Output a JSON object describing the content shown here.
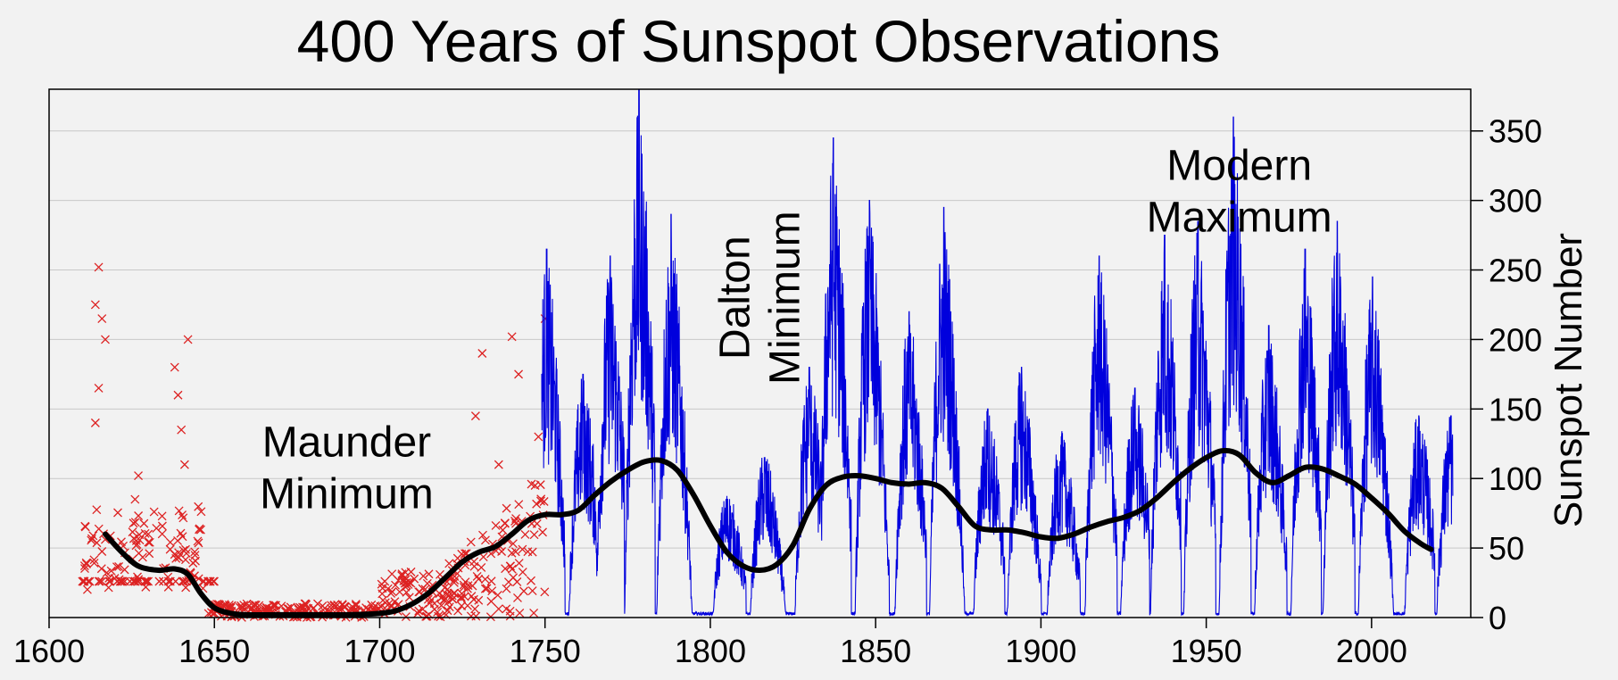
{
  "chart_data": {
    "type": "scatter+line",
    "title": "400 Years of Sunspot Observations",
    "xlabel": "",
    "ylabel": "Sunspot Number",
    "xlim": [
      1600,
      2030
    ],
    "ylim": [
      0,
      380
    ],
    "x_ticks": [
      1600,
      1650,
      1700,
      1750,
      1800,
      1850,
      1900,
      1950,
      2000
    ],
    "y_ticks": [
      0,
      50,
      100,
      150,
      200,
      250,
      300,
      350
    ],
    "y_axis_side": "right",
    "grid": "horizontal",
    "colors": {
      "early_observations": "#dd2222",
      "monthly": "#0000dd",
      "smoothed": "#000000"
    },
    "annotations": [
      {
        "lines": [
          "Maunder",
          "Minimum"
        ],
        "x": 1690,
        "y": 116,
        "vertical": false
      },
      {
        "lines": [
          "Dalton",
          "Minimum"
        ],
        "x": 1815,
        "y": 230,
        "vertical": true
      },
      {
        "lines": [
          "Modern",
          "Maximum"
        ],
        "x": 1960,
        "y": 315,
        "vertical": false
      }
    ],
    "cycles": [
      {
        "max_year": 1750.5,
        "max": 265
      },
      {
        "max_year": 1761.5,
        "max": 175
      },
      {
        "max_year": 1769.7,
        "max": 260
      },
      {
        "max_year": 1778.4,
        "max": 380
      },
      {
        "max_year": 1788.1,
        "max": 290
      },
      {
        "max_year": 1805.2,
        "max": 85
      },
      {
        "max_year": 1816.4,
        "max": 115
      },
      {
        "max_year": 1829.9,
        "max": 180
      },
      {
        "max_year": 1837.2,
        "max": 345
      },
      {
        "max_year": 1848.1,
        "max": 300
      },
      {
        "max_year": 1860.1,
        "max": 220
      },
      {
        "max_year": 1870.6,
        "max": 295
      },
      {
        "max_year": 1883.9,
        "max": 150
      },
      {
        "max_year": 1894.1,
        "max": 180
      },
      {
        "max_year": 1906.2,
        "max": 130
      },
      {
        "max_year": 1917.6,
        "max": 260
      },
      {
        "max_year": 1928.4,
        "max": 165
      },
      {
        "max_year": 1937.4,
        "max": 275
      },
      {
        "max_year": 1947.5,
        "max": 285
      },
      {
        "max_year": 1958.2,
        "max": 360
      },
      {
        "max_year": 1968.9,
        "max": 210
      },
      {
        "max_year": 1979.9,
        "max": 265
      },
      {
        "max_year": 1989.6,
        "max": 285
      },
      {
        "max_year": 2000.3,
        "max": 245
      },
      {
        "max_year": 2014.3,
        "max": 145
      },
      {
        "max_year": 2024.0,
        "max": 145
      }
    ],
    "early_observations_peaks": [
      {
        "x": 1615,
        "y": 252
      },
      {
        "x": 1614,
        "y": 225
      },
      {
        "x": 1616,
        "y": 215
      },
      {
        "x": 1617,
        "y": 200
      },
      {
        "x": 1615,
        "y": 165
      },
      {
        "x": 1614,
        "y": 140
      },
      {
        "x": 1627,
        "y": 102
      },
      {
        "x": 1626,
        "y": 85
      },
      {
        "x": 1630,
        "y": 60
      },
      {
        "x": 1638,
        "y": 180
      },
      {
        "x": 1639,
        "y": 160
      },
      {
        "x": 1640,
        "y": 135
      },
      {
        "x": 1641,
        "y": 110
      },
      {
        "x": 1642,
        "y": 200
      },
      {
        "x": 1644,
        "y": 30
      },
      {
        "x": 1729,
        "y": 145
      },
      {
        "x": 1731,
        "y": 190
      },
      {
        "x": 1736,
        "y": 110
      },
      {
        "x": 1740,
        "y": 202
      },
      {
        "x": 1742,
        "y": 175
      },
      {
        "x": 1747,
        "y": 95
      },
      {
        "x": 1750,
        "y": 215
      },
      {
        "x": 1748,
        "y": 130
      }
    ],
    "smoothed_curve": {
      "x": [
        1617,
        1622,
        1627,
        1633,
        1638,
        1642,
        1646,
        1650,
        1655,
        1660,
        1670,
        1680,
        1690,
        1700,
        1705,
        1710,
        1715,
        1720,
        1725,
        1730,
        1735,
        1740,
        1745,
        1750,
        1755,
        1760,
        1765,
        1770,
        1775,
        1780,
        1785,
        1790,
        1795,
        1800,
        1805,
        1810,
        1815,
        1820,
        1825,
        1830,
        1835,
        1840,
        1845,
        1850,
        1855,
        1860,
        1865,
        1870,
        1875,
        1880,
        1885,
        1890,
        1895,
        1900,
        1905,
        1910,
        1915,
        1920,
        1925,
        1930,
        1935,
        1940,
        1945,
        1950,
        1955,
        1960,
        1965,
        1970,
        1975,
        1980,
        1985,
        1990,
        1995,
        2000,
        2005,
        2010,
        2015,
        2018
      ],
      "y": [
        60,
        47,
        37,
        34,
        35,
        31,
        17,
        7,
        3,
        2,
        2,
        2,
        2,
        3,
        5,
        10,
        18,
        29,
        40,
        47,
        51,
        60,
        70,
        74,
        74,
        77,
        88,
        98,
        106,
        112,
        113,
        106,
        88,
        66,
        47,
        37,
        34,
        38,
        52,
        78,
        95,
        101,
        102,
        100,
        97,
        96,
        97,
        93,
        80,
        66,
        63,
        63,
        61,
        58,
        57,
        60,
        65,
        69,
        72,
        77,
        86,
        97,
        107,
        115,
        120,
        117,
        104,
        97,
        102,
        108,
        107,
        102,
        96,
        86,
        75,
        62,
        53,
        49
      ]
    }
  }
}
